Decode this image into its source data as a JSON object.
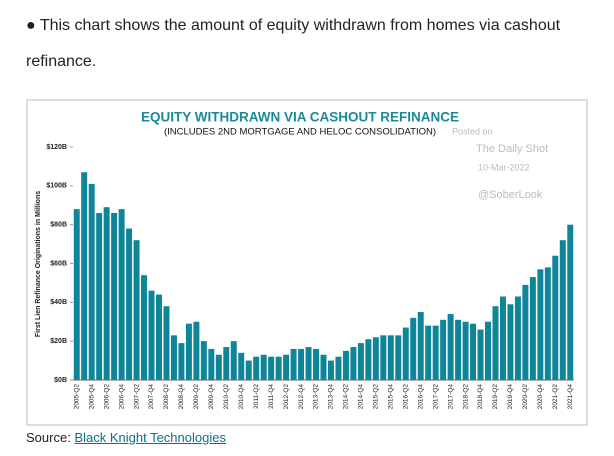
{
  "bullet_text": "This chart shows the amount of equity withdrawn from homes via cashout refinance.",
  "source_label": "Source:",
  "source_link": "Black Knight Technologies",
  "chart_data": {
    "type": "bar",
    "title": "EQUITY WITHDRAWN VIA CASHOUT REFINANCE",
    "subtitle": "(INCLUDES 2ND MORTGAGE AND HELOC CONSOLIDATION)",
    "y_label": "First Lien Refinance Originations in Millions",
    "annotations": [
      "Posted on",
      "The Daily Shot",
      "10-Mar-2022",
      "@SoberLook"
    ],
    "color": "#0e8599",
    "grid": false,
    "ylim": [
      0,
      120
    ],
    "yticks": [
      {
        "value": 0,
        "label": "$0B"
      },
      {
        "value": 20,
        "label": "$20B"
      },
      {
        "value": 40,
        "label": "$40B"
      },
      {
        "value": 60,
        "label": "$60B"
      },
      {
        "value": 80,
        "label": "$80B"
      },
      {
        "value": 100,
        "label": "$100B"
      },
      {
        "value": 120,
        "label": "$120B"
      }
    ],
    "categories": [
      "2005-Q2",
      null,
      "2005-Q4",
      null,
      "2006-Q2",
      null,
      "2006-Q4",
      null,
      "2007-Q2",
      null,
      "2007-Q4",
      null,
      "2008-Q2",
      null,
      "2008-Q4",
      null,
      "2009-Q2",
      null,
      "2009-Q4",
      null,
      "2010-Q2",
      null,
      "2010-Q4",
      null,
      "2011-Q2",
      null,
      "2011-Q4",
      null,
      "2012-Q2",
      null,
      "2012-Q4",
      null,
      "2013-Q2",
      null,
      "2013-Q4",
      null,
      "2014-Q2",
      null,
      "2014-Q4",
      null,
      "2015-Q2",
      null,
      "2015-Q4",
      null,
      "2016-Q2",
      null,
      "2016-Q4",
      null,
      "2017-Q2",
      null,
      "2017-Q4",
      null,
      "2018-Q2",
      null,
      "2018-Q4",
      null,
      "2019-Q2",
      null,
      "2019-Q4",
      null,
      "2020-Q2",
      null,
      "2020-Q4",
      null,
      "2021-Q2",
      null,
      "2021-Q4"
    ],
    "values": [
      88,
      107,
      101,
      86,
      89,
      86,
      88,
      78,
      72,
      54,
      46,
      44,
      38,
      23,
      19,
      29,
      30,
      20,
      16,
      13,
      17,
      20,
      14,
      10,
      12,
      13,
      12,
      12,
      13,
      16,
      16,
      17,
      16,
      13,
      10,
      12,
      15,
      17,
      19,
      21,
      22,
      23,
      23,
      23,
      27,
      32,
      35,
      28,
      28,
      31,
      34,
      31,
      30,
      29,
      26,
      30,
      38,
      43,
      39,
      43,
      49,
      53,
      57,
      58,
      64,
      72,
      80
    ]
  }
}
